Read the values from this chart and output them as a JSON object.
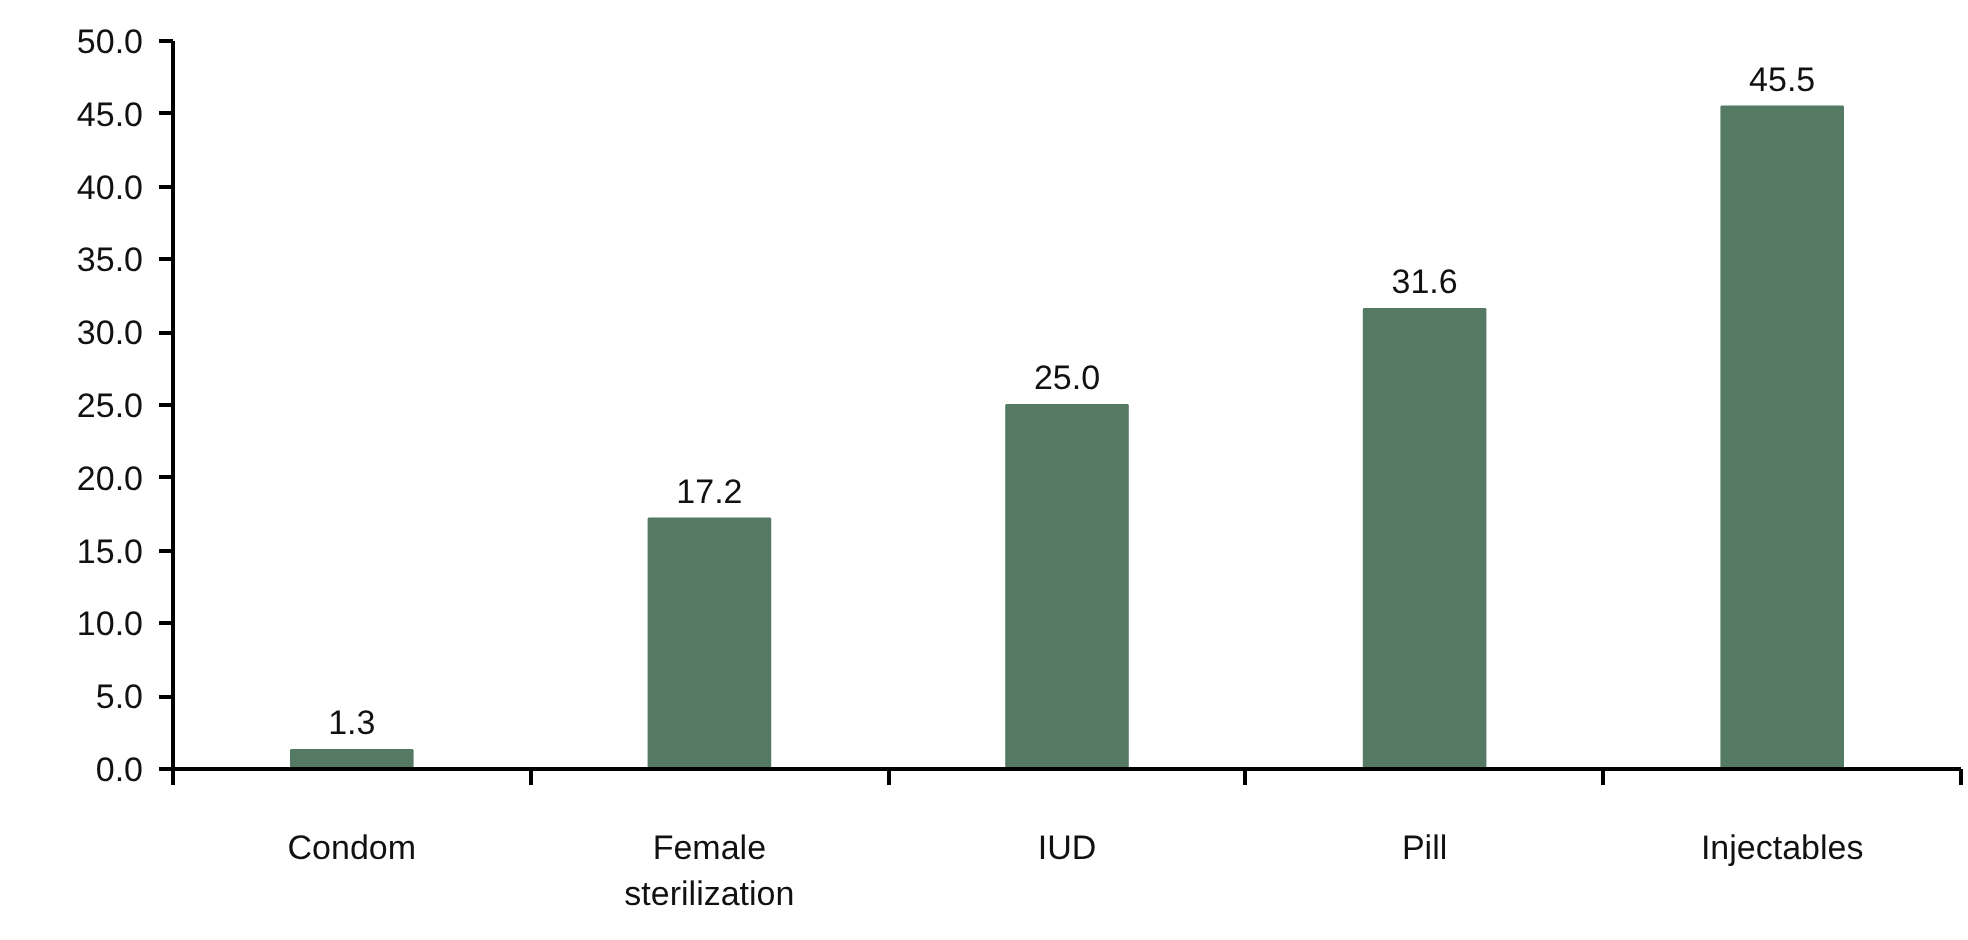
{
  "chart_data": {
    "type": "bar",
    "categories": [
      "Condom",
      "Female sterilization",
      "IUD",
      "Pill",
      "Injectables"
    ],
    "values": [
      1.3,
      17.2,
      25.0,
      31.6,
      45.5
    ],
    "value_labels": [
      "1.3",
      "17.2",
      "25.0",
      "31.6",
      "45.5"
    ],
    "color": "#557a63",
    "ylim": [
      0,
      50
    ],
    "yticks": [
      {
        "value": 0,
        "label": "0.0"
      },
      {
        "value": 5,
        "label": "5.0"
      },
      {
        "value": 10,
        "label": "10.0"
      },
      {
        "value": 15,
        "label": "15.0"
      },
      {
        "value": 20,
        "label": "20.0"
      },
      {
        "value": 25,
        "label": "25.0"
      },
      {
        "value": 30,
        "label": "30.0"
      },
      {
        "value": 35,
        "label": "35.0"
      },
      {
        "value": 40,
        "label": "40.0"
      },
      {
        "value": 45,
        "label": "45.0"
      },
      {
        "value": 50,
        "label": "50.0"
      }
    ],
    "grid": false
  }
}
